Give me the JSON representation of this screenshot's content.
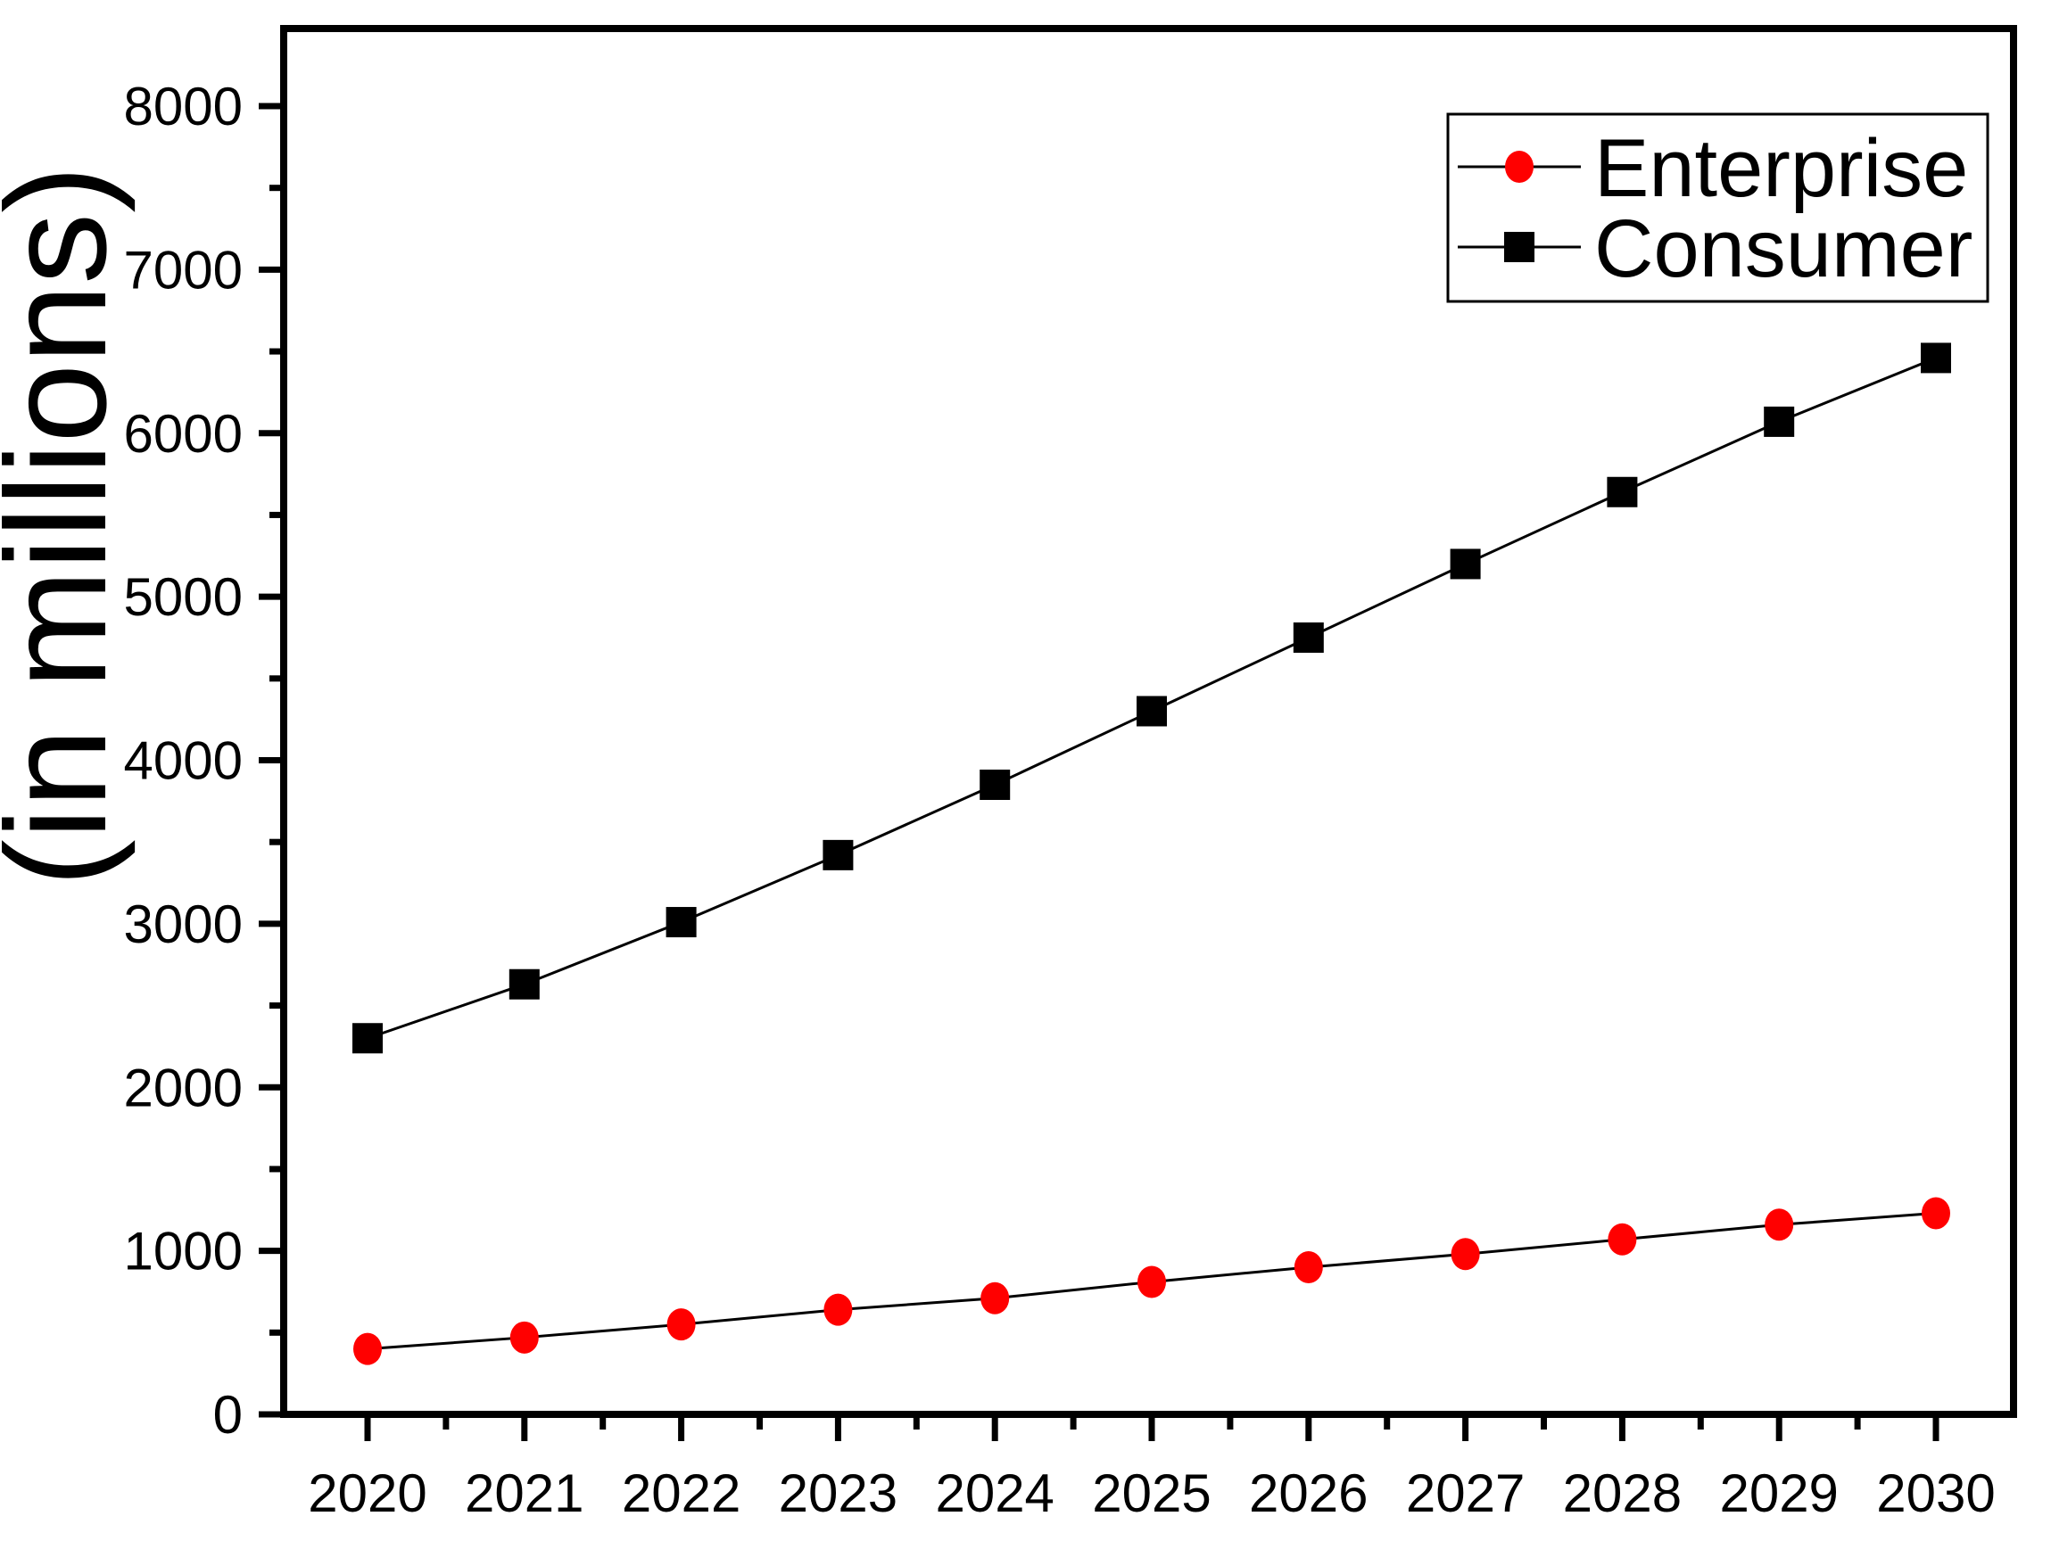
{
  "chart_data": {
    "type": "line",
    "title": "",
    "xlabel": "",
    "ylabel": "(in millions)",
    "categories": [
      2020,
      2021,
      2022,
      2023,
      2024,
      2025,
      2026,
      2027,
      2028,
      2029,
      2030
    ],
    "series": [
      {
        "name": "Enterprise",
        "marker": "circle",
        "marker_color": "#ff0000",
        "line_color": "#000000",
        "values": [
          400,
          470,
          550,
          640,
          710,
          810,
          900,
          980,
          1070,
          1160,
          1230
        ]
      },
      {
        "name": "Consumer",
        "marker": "square",
        "marker_color": "#000000",
        "line_color": "#000000",
        "values": [
          2300,
          2630,
          3010,
          3420,
          3850,
          4300,
          4750,
          5200,
          5640,
          6070,
          6460
        ]
      }
    ],
    "y_axis": {
      "min": 0,
      "max": 8475,
      "tick_values": [
        0,
        1000,
        2000,
        3000,
        4000,
        5000,
        6000,
        7000,
        8000
      ],
      "tick_labels": [
        "0",
        "1000",
        "2000",
        "3000",
        "4000",
        "5000",
        "6000",
        "7000",
        "8000"
      ],
      "minor_tick_values": [
        500,
        1500,
        2500,
        3500,
        4500,
        5500,
        6500,
        7500
      ]
    },
    "x_axis": {
      "tick_labels": [
        "2020",
        "2021",
        "2022",
        "2023",
        "2024",
        "2025",
        "2026",
        "2027",
        "2028",
        "2029",
        "2030"
      ],
      "minor_ticks_between_years": true
    },
    "legend": {
      "position": "top-right",
      "border": true,
      "entries": [
        "Enterprise",
        "Consumer"
      ]
    },
    "grid": false,
    "background_color": "#ffffff",
    "frame_color": "#000000",
    "text_color": "#000000"
  }
}
